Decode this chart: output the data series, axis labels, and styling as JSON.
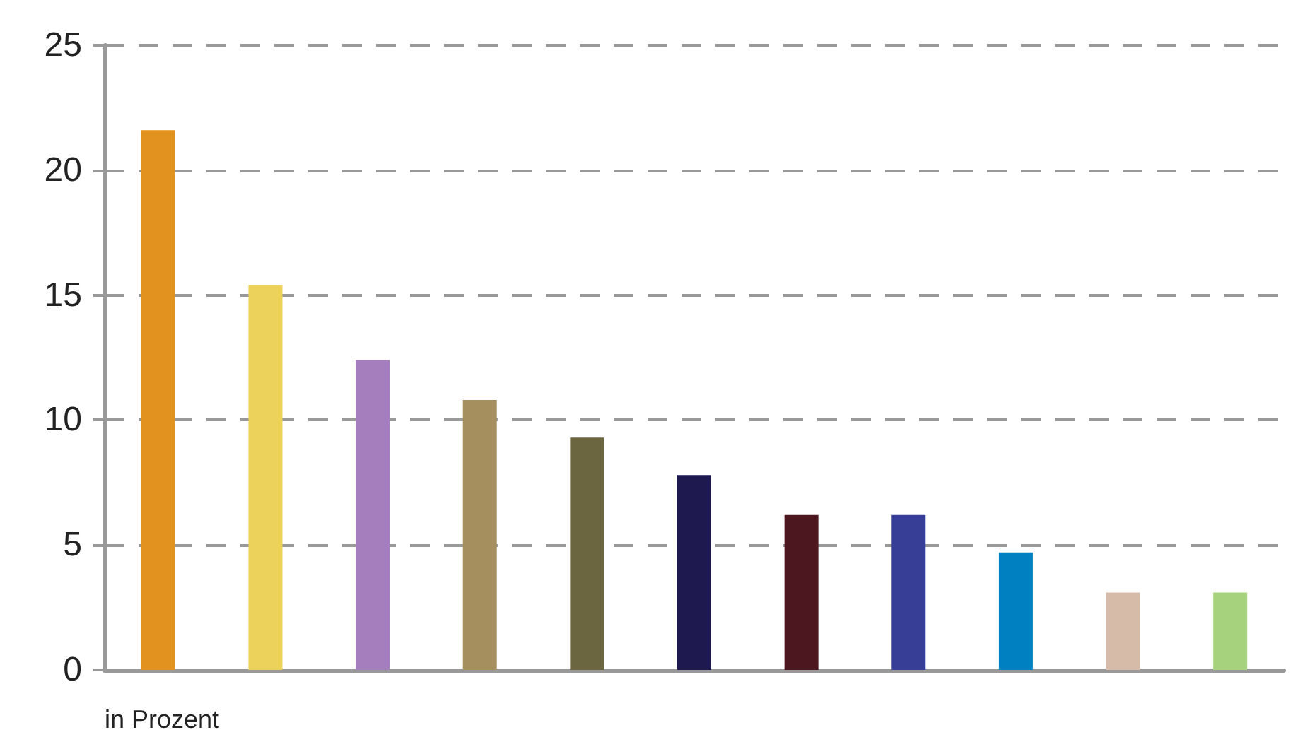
{
  "chart_data": {
    "type": "bar",
    "annotations": [
      "in Prozent"
    ],
    "categories": [
      null,
      null,
      null,
      null,
      null,
      null,
      null,
      null,
      null,
      null,
      null
    ],
    "values": [
      21.6,
      15.4,
      12.4,
      10.8,
      9.3,
      7.8,
      6.2,
      6.2,
      4.7,
      3.1,
      3.1
    ],
    "colors": [
      "#e2921e",
      "#ecd25a",
      "#a57fbd",
      "#a58f5e",
      "#6b6640",
      "#1e1a4f",
      "#4d1720",
      "#373e96",
      "#0080c0",
      "#d6bba8",
      "#a7d27d"
    ],
    "ylim": [
      0,
      25
    ],
    "yticks": [
      0,
      5,
      10,
      15,
      20,
      25
    ],
    "grid": "y"
  }
}
